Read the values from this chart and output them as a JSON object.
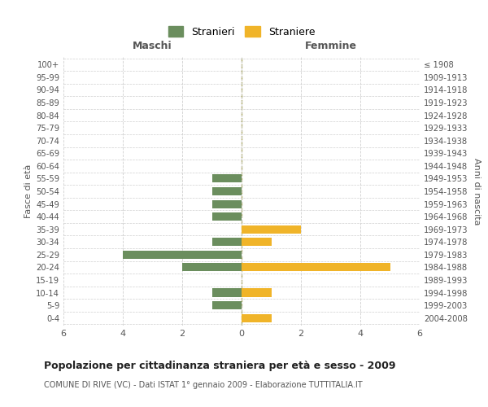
{
  "age_groups": [
    "100+",
    "95-99",
    "90-94",
    "85-89",
    "80-84",
    "75-79",
    "70-74",
    "65-69",
    "60-64",
    "55-59",
    "50-54",
    "45-49",
    "40-44",
    "35-39",
    "30-34",
    "25-29",
    "20-24",
    "15-19",
    "10-14",
    "5-9",
    "0-4"
  ],
  "birth_years": [
    "≤ 1908",
    "1909-1913",
    "1914-1918",
    "1919-1923",
    "1924-1928",
    "1929-1933",
    "1934-1938",
    "1939-1943",
    "1944-1948",
    "1949-1953",
    "1954-1958",
    "1959-1963",
    "1964-1968",
    "1969-1973",
    "1974-1978",
    "1979-1983",
    "1984-1988",
    "1989-1993",
    "1994-1998",
    "1999-2003",
    "2004-2008"
  ],
  "maschi": [
    0,
    0,
    0,
    0,
    0,
    0,
    0,
    0,
    0,
    1,
    1,
    1,
    1,
    0,
    1,
    4,
    2,
    0,
    1,
    1,
    0
  ],
  "femmine": [
    0,
    0,
    0,
    0,
    0,
    0,
    0,
    0,
    0,
    0,
    0,
    0,
    0,
    2,
    1,
    0,
    5,
    0,
    1,
    0,
    1
  ],
  "maschi_color": "#6b8e5e",
  "femmine_color": "#f0b429",
  "title": "Popolazione per cittadinanza straniera per età e sesso - 2009",
  "subtitle": "COMUNE DI RIVE (VC) - Dati ISTAT 1° gennaio 2009 - Elaborazione TUTTITALIA.IT",
  "xlabel_left": "Maschi",
  "xlabel_right": "Femmine",
  "ylabel_left": "Fasce di età",
  "ylabel_right": "Anni di nascita",
  "legend_stranieri": "Stranieri",
  "legend_straniere": "Straniere",
  "xlim": 6,
  "background_color": "#ffffff",
  "grid_color": "#d0d0d0"
}
